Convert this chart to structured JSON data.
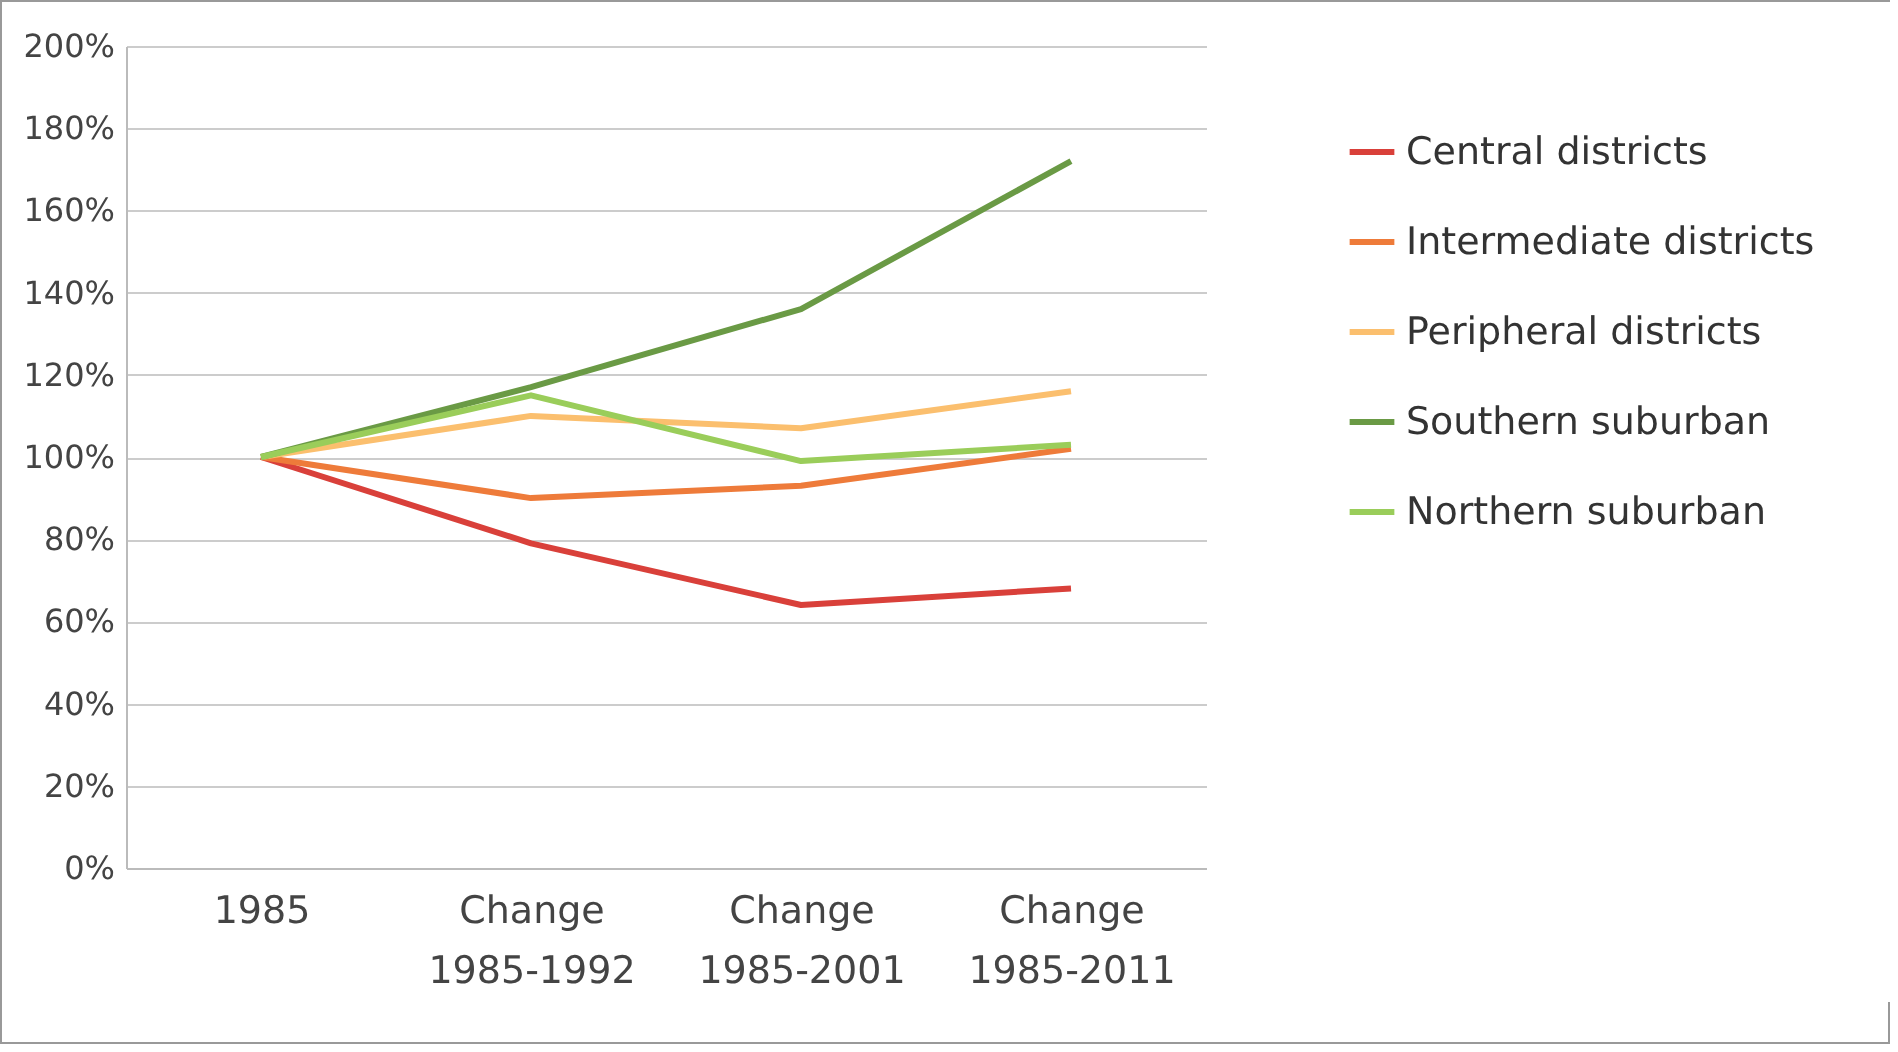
{
  "chart_data": {
    "type": "line",
    "categories": [
      "1985",
      "Change 1985-1992",
      "Change 1985-2001",
      "Change 1985-2011"
    ],
    "series": [
      {
        "name": "Central districts",
        "color": "#d9403a",
        "values": [
          100,
          79,
          64,
          68
        ]
      },
      {
        "name": "Intermediate districts",
        "color": "#ee7b3a",
        "values": [
          100,
          90,
          93,
          102
        ]
      },
      {
        "name": "Peripheral districts",
        "color": "#fbbf6e",
        "values": [
          100,
          110,
          107,
          116
        ]
      },
      {
        "name": "Southern suburban",
        "color": "#6a9a45",
        "values": [
          100,
          117,
          136,
          172
        ]
      },
      {
        "name": "Northern suburban",
        "color": "#9acd5a",
        "values": [
          100,
          115,
          99,
          103
        ]
      }
    ],
    "ylim": [
      0,
      200
    ],
    "yticks": [
      {
        "value": 0,
        "label": "0%"
      },
      {
        "value": 20,
        "label": "20%"
      },
      {
        "value": 40,
        "label": "40%"
      },
      {
        "value": 60,
        "label": "60%"
      },
      {
        "value": 80,
        "label": "80%"
      },
      {
        "value": 100,
        "label": "100%"
      },
      {
        "value": 120,
        "label": "120%"
      },
      {
        "value": 140,
        "label": "140%"
      },
      {
        "value": 160,
        "label": "160%"
      },
      {
        "value": 180,
        "label": "180%"
      },
      {
        "value": 200,
        "label": "200%"
      }
    ],
    "grid": "y",
    "legend": "right",
    "marker": "none",
    "line_style": "solid"
  }
}
